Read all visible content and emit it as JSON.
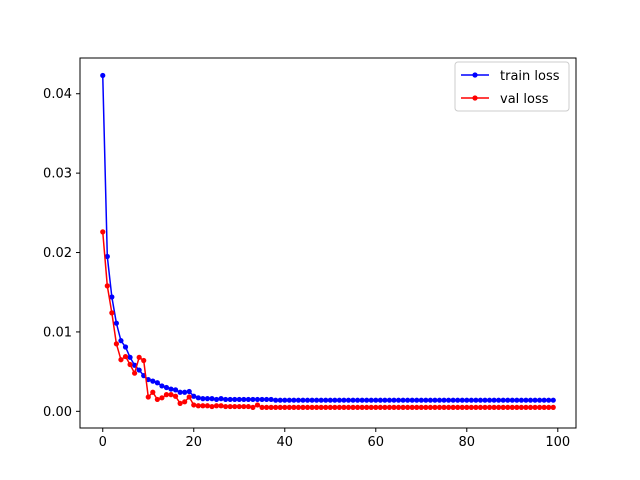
{
  "chart_data": {
    "type": "line",
    "title": "",
    "xlabel": "",
    "ylabel": "",
    "xlim": [
      -5,
      104
    ],
    "ylim": [
      -0.0021,
      0.0445
    ],
    "x_ticks": [
      0,
      20,
      40,
      60,
      80,
      100
    ],
    "y_ticks": [
      0.0,
      0.01,
      0.02,
      0.03,
      0.04
    ],
    "x_tick_labels": [
      "0",
      "20",
      "40",
      "60",
      "80",
      "100"
    ],
    "y_tick_labels": [
      "0.00",
      "0.01",
      "0.02",
      "0.03",
      "0.04"
    ],
    "grid": false,
    "legend_position": "top-right",
    "series": [
      {
        "name": "train loss",
        "color": "#0000ff",
        "marker": "circle",
        "values": [
          0.0423,
          0.0195,
          0.0144,
          0.0111,
          0.0089,
          0.0081,
          0.0068,
          0.0058,
          0.0052,
          0.0045,
          0.004,
          0.0038,
          0.0036,
          0.0032,
          0.003,
          0.0028,
          0.0027,
          0.0024,
          0.0024,
          0.0025,
          0.0019,
          0.0017,
          0.0016,
          0.0016,
          0.0016,
          0.0015,
          0.0016,
          0.0015,
          0.0015,
          0.0015,
          0.0015,
          0.0015,
          0.0015,
          0.0015,
          0.0015,
          0.0015,
          0.0015,
          0.0015,
          0.0014,
          0.0014,
          0.0014,
          0.0014,
          0.0014,
          0.0014,
          0.0014,
          0.0014,
          0.0014,
          0.0014,
          0.0014,
          0.0014,
          0.0014,
          0.0014,
          0.0014,
          0.0014,
          0.0014,
          0.0014,
          0.0014,
          0.0014,
          0.0014,
          0.0014,
          0.0014,
          0.0014,
          0.0014,
          0.0014,
          0.0014,
          0.0014,
          0.0014,
          0.0014,
          0.0014,
          0.0014,
          0.0014,
          0.0014,
          0.0014,
          0.0014,
          0.0014,
          0.0014,
          0.0014,
          0.0014,
          0.0014,
          0.0014,
          0.0014,
          0.0014,
          0.0014,
          0.0014,
          0.0014,
          0.0014,
          0.0014,
          0.0014,
          0.0014,
          0.0014,
          0.0014,
          0.0014,
          0.0014,
          0.0014,
          0.0014,
          0.0014,
          0.0014,
          0.0014,
          0.0014,
          0.0014
        ]
      },
      {
        "name": "val loss",
        "color": "#ff0000",
        "marker": "circle",
        "values": [
          0.0226,
          0.0158,
          0.0124,
          0.0085,
          0.0065,
          0.0069,
          0.0059,
          0.0048,
          0.0068,
          0.0064,
          0.0018,
          0.0024,
          0.0015,
          0.0017,
          0.0021,
          0.0021,
          0.0019,
          0.001,
          0.0012,
          0.0018,
          0.0008,
          0.0007,
          0.0007,
          0.0007,
          0.0006,
          0.0007,
          0.0007,
          0.0006,
          0.0006,
          0.0006,
          0.0006,
          0.0006,
          0.0006,
          0.0005,
          0.0008,
          0.0005,
          0.0005,
          0.0005,
          0.0005,
          0.0005,
          0.0005,
          0.0005,
          0.0005,
          0.0005,
          0.0005,
          0.0005,
          0.0005,
          0.0005,
          0.0005,
          0.0005,
          0.0005,
          0.0005,
          0.0005,
          0.0005,
          0.0005,
          0.0005,
          0.0005,
          0.0005,
          0.0005,
          0.0005,
          0.0005,
          0.0005,
          0.0005,
          0.0005,
          0.0005,
          0.0005,
          0.0005,
          0.0005,
          0.0005,
          0.0005,
          0.0005,
          0.0005,
          0.0005,
          0.0005,
          0.0005,
          0.0005,
          0.0005,
          0.0005,
          0.0005,
          0.0005,
          0.0005,
          0.0005,
          0.0005,
          0.0005,
          0.0005,
          0.0005,
          0.0005,
          0.0005,
          0.0005,
          0.0005,
          0.0005,
          0.0005,
          0.0005,
          0.0005,
          0.0005,
          0.0005,
          0.0005,
          0.0005,
          0.0005,
          0.0005
        ]
      }
    ]
  }
}
